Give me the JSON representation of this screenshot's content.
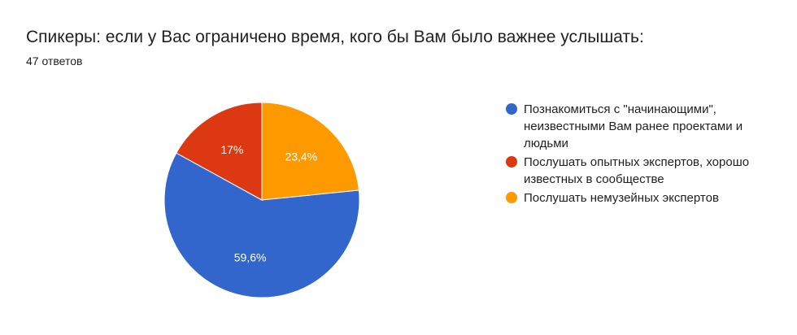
{
  "title": "Спикеры: если у Вас ограничено время, кого бы Вам было важнее услышать:",
  "subtitle": "47 ответов",
  "chart_data": {
    "type": "pie",
    "title": "Спикеры: если у Вас ограничено время, кого бы Вам было важнее услышать:",
    "legend_position": "right",
    "slices": [
      {
        "label": "Познакомиться с \"начинающими\", неизвестными Вам ранее проектами и людьми",
        "value": 59.6,
        "display": "59,6%",
        "color": "#3366cc"
      },
      {
        "label": "Послушать опытных экспертов, хорошо известных в сообществе",
        "value": 17,
        "display": "17%",
        "color": "#dc3912"
      },
      {
        "label": "Послушать немузейных экспертов",
        "value": 23.4,
        "display": "23,4%",
        "color": "#ff9900"
      }
    ]
  }
}
